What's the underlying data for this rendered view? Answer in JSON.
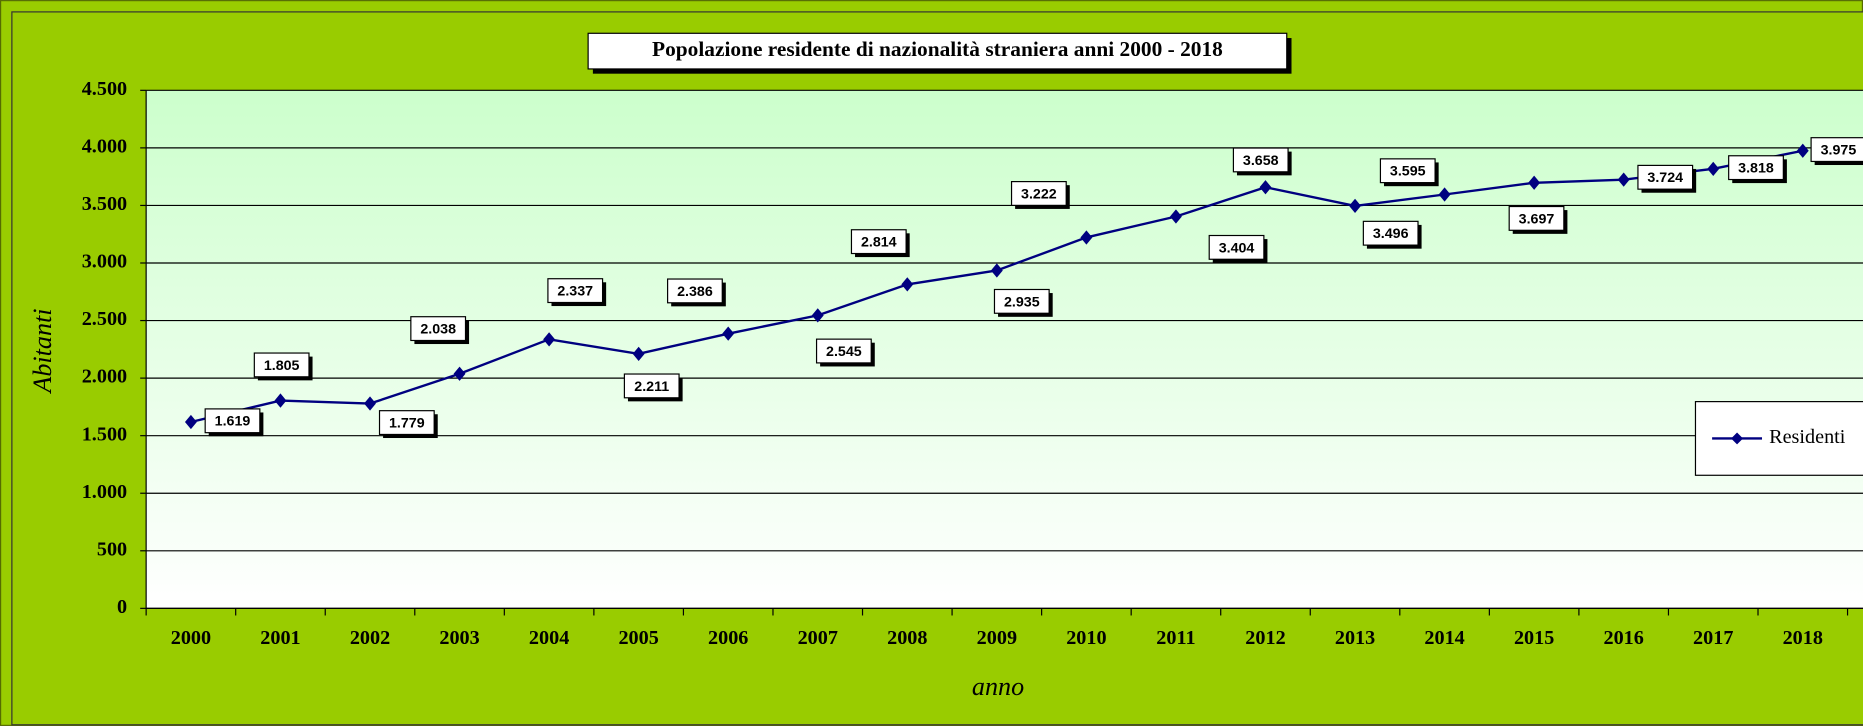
{
  "chart_data": {
    "type": "line",
    "title": "Popolazione residente di nazionalità straniera  anni 2000 - 2018",
    "x_label": "anno",
    "y_label": "Abitanti",
    "categories": [
      "2000",
      "2001",
      "2002",
      "2003",
      "2004",
      "2005",
      "2006",
      "2007",
      "2008",
      "2009",
      "2010",
      "2011",
      "2012",
      "2013",
      "2014",
      "2015",
      "2016",
      "2017",
      "2018"
    ],
    "series": [
      {
        "name": "Residenti",
        "color": "#000080",
        "values": [
          1619,
          1805,
          1779,
          2038,
          2337,
          2211,
          2386,
          2545,
          2814,
          2935,
          3222,
          3404,
          3658,
          3496,
          3595,
          3697,
          3724,
          3818,
          3975
        ],
        "value_labels": [
          "1.619",
          "1.805",
          "1.779",
          "2.038",
          "2.337",
          "2.211",
          "2.386",
          "2.545",
          "2.814",
          "2.935",
          "3.222",
          "3.404",
          "3.658",
          "3.496",
          "3.595",
          "3.697",
          "3.724",
          "3.818",
          "3.975"
        ]
      }
    ],
    "ylim": [
      0,
      4500
    ],
    "yticks": [
      0,
      500,
      {
        "value": 1000,
        "label": "1.000"
      },
      {
        "value": 1500,
        "label": "1.500"
      },
      {
        "value": 2000,
        "label": "2.000"
      },
      {
        "value": 2500,
        "label": "2.500"
      },
      {
        "value": 3000,
        "label": "3.000"
      },
      {
        "value": 3500,
        "label": "3.500"
      },
      {
        "value": 4000,
        "label": "4.000"
      },
      {
        "value": 4500,
        "label": "4.500"
      }
    ],
    "grid": true,
    "legend": "right"
  }
}
